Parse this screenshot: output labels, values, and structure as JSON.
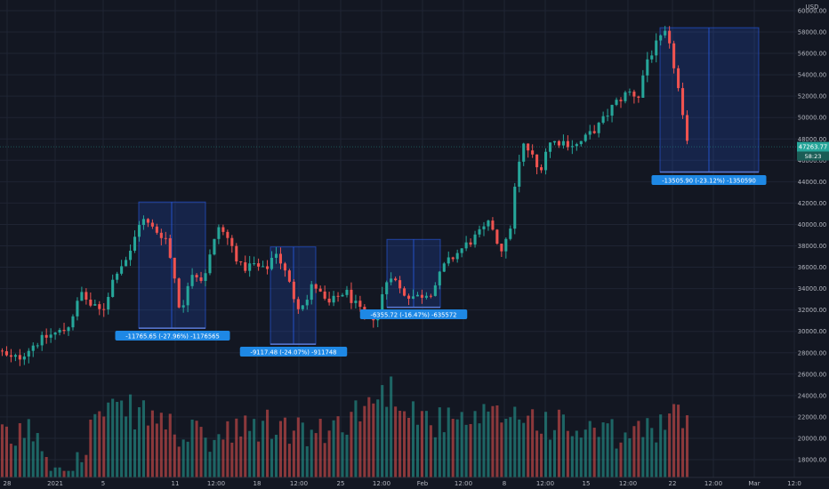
{
  "chart_data": {
    "type": "candlestick",
    "instrument_currency": "USD",
    "y_axis": {
      "ylim": [
        16800,
        60000
      ],
      "ticks": [
        18000,
        20000,
        22000,
        24000,
        26000,
        28000,
        30000,
        32000,
        34000,
        36000,
        38000,
        40000,
        42000,
        44000,
        46000,
        48000,
        50000,
        52000,
        54000,
        56000,
        58000,
        60000
      ]
    },
    "x_axis": {
      "labels": [
        "28",
        "2021",
        "5",
        "11",
        "12:00",
        "18",
        "12:00",
        "25",
        "12:00",
        "Feb",
        "12:00",
        "8",
        "12:00",
        "15",
        "12:00",
        "22",
        "12:00",
        "Mar",
        "12:0"
      ]
    },
    "price_path": [
      [
        0,
        28200
      ],
      [
        10,
        27400
      ],
      [
        22,
        27600
      ],
      [
        38,
        28800
      ],
      [
        55,
        29600
      ],
      [
        75,
        30200
      ],
      [
        92,
        33600
      ],
      [
        102,
        32400
      ],
      [
        115,
        31800
      ],
      [
        130,
        35600
      ],
      [
        146,
        37200
      ],
      [
        158,
        40600
      ],
      [
        172,
        39600
      ],
      [
        186,
        38800
      ],
      [
        196,
        35200
      ],
      [
        204,
        31200
      ],
      [
        214,
        35800
      ],
      [
        228,
        34800
      ],
      [
        246,
        39800
      ],
      [
        258,
        38400
      ],
      [
        272,
        35800
      ],
      [
        284,
        36300
      ],
      [
        298,
        35600
      ],
      [
        310,
        37600
      ],
      [
        322,
        35200
      ],
      [
        334,
        32400
      ],
      [
        346,
        33000
      ],
      [
        352,
        34600
      ],
      [
        368,
        32400
      ],
      [
        388,
        33800
      ],
      [
        402,
        32200
      ],
      [
        414,
        30800
      ],
      [
        424,
        31800
      ],
      [
        438,
        35600
      ],
      [
        452,
        33600
      ],
      [
        468,
        33200
      ],
      [
        486,
        33800
      ],
      [
        500,
        36200
      ],
      [
        520,
        37800
      ],
      [
        540,
        39200
      ],
      [
        552,
        40200
      ],
      [
        562,
        37600
      ],
      [
        572,
        38600
      ],
      [
        580,
        44200
      ],
      [
        588,
        47400
      ],
      [
        596,
        46800
      ],
      [
        606,
        44800
      ],
      [
        616,
        47600
      ],
      [
        630,
        47800
      ],
      [
        648,
        47400
      ],
      [
        660,
        48200
      ],
      [
        675,
        49400
      ],
      [
        690,
        51200
      ],
      [
        706,
        52400
      ],
      [
        718,
        52000
      ],
      [
        726,
        55200
      ],
      [
        738,
        56800
      ],
      [
        748,
        57800
      ],
      [
        756,
        55600
      ],
      [
        764,
        52000
      ],
      [
        770,
        48400
      ],
      [
        775,
        46400
      ]
    ],
    "volume_profile": [
      [
        0,
        19000
      ],
      [
        40,
        20200
      ],
      [
        60,
        16950
      ],
      [
        95,
        16950
      ],
      [
        100,
        21000
      ],
      [
        140,
        22000
      ],
      [
        180,
        21200
      ],
      [
        200,
        19800
      ],
      [
        240,
        19200
      ],
      [
        300,
        20600
      ],
      [
        360,
        19600
      ],
      [
        410,
        22400
      ],
      [
        440,
        24000
      ],
      [
        480,
        21000
      ],
      [
        520,
        20600
      ],
      [
        580,
        21800
      ],
      [
        640,
        20200
      ],
      [
        700,
        19400
      ],
      [
        740,
        20600
      ],
      [
        775,
        21600
      ]
    ],
    "annotations": [
      {
        "type": "drawdown",
        "text": "-11765.65 (-27.96%) -1176565",
        "price_high": 42100,
        "price_low": 30300
      },
      {
        "type": "drawdown",
        "text": "-9117.48 (-24.07%) -911748",
        "price_high": 37900,
        "price_low": 28800
      },
      {
        "type": "drawdown",
        "text": "-6355.72 (-16.47%) -635572",
        "price_high": 38600,
        "price_low": 32250
      },
      {
        "type": "drawdown",
        "text": "-13505.90 (-23.12%) -1350590",
        "price_high": 58400,
        "price_low": 44900
      }
    ],
    "last_price_label": "47263.77",
    "countdown_label": "58:23",
    "last_price": 47263.77,
    "grid": true,
    "colors": {
      "background": "#131722",
      "up": "#26a69a",
      "down": "#ef5350",
      "annotation_box": "#2962ff",
      "label_bg": "#1e88e5",
      "last_price_bg": "#26a69a",
      "text": "#b2b5be",
      "grid": "#1f2433"
    }
  }
}
